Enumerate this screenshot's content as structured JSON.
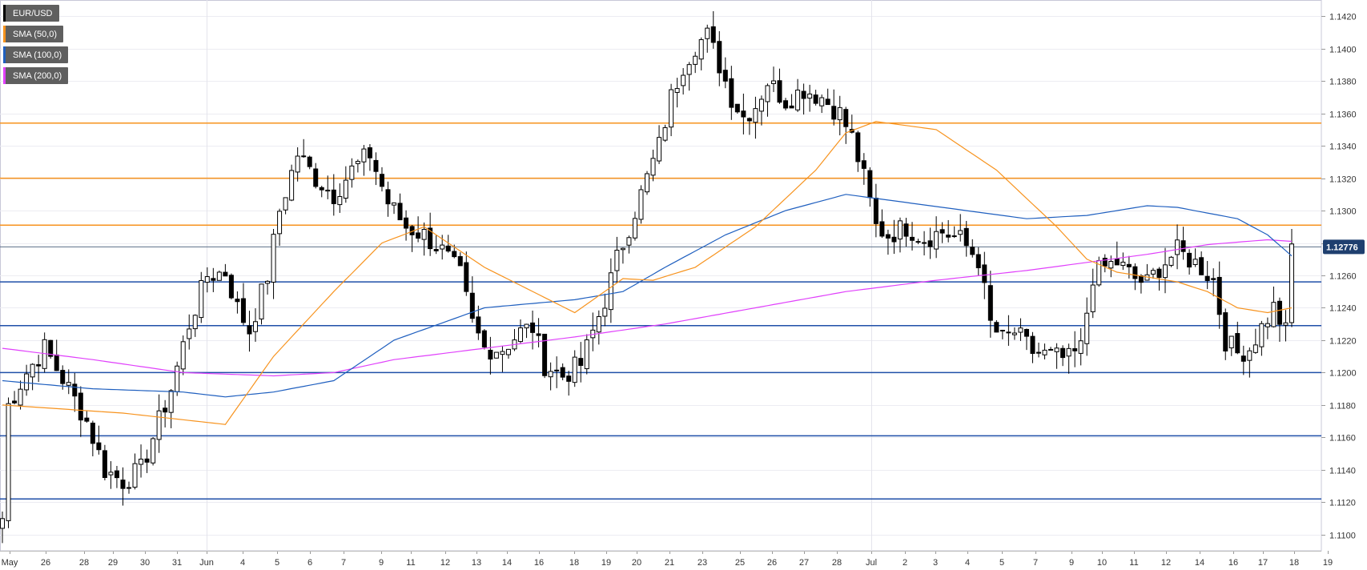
{
  "chart_data": {
    "type": "candlestick",
    "symbol": "EUR/USD",
    "legend": [
      {
        "label": "EUR/USD",
        "color": "#000000"
      },
      {
        "label": "SMA (50,0)",
        "color": "#f7931e"
      },
      {
        "label": "SMA (100,0)",
        "color": "#1f5fbf"
      },
      {
        "label": "SMA (200,0)",
        "color": "#e040fb"
      }
    ],
    "last_price": "1.12776",
    "ylim": [
      1.109,
      1.143
    ],
    "y_ticks": [
      "1.1100",
      "1.1120",
      "1.1140",
      "1.1160",
      "1.1180",
      "1.1200",
      "1.1220",
      "1.1240",
      "1.1260",
      "1.1280",
      "1.1300",
      "1.1320",
      "1.1340",
      "1.1360",
      "1.1380",
      "1.1400",
      "1.1420"
    ],
    "x_labels": [
      "May",
      "26",
      "28",
      "29",
      "30",
      "31",
      "Jun",
      "4",
      "5",
      "6",
      "7",
      "9",
      "11",
      "12",
      "13",
      "14",
      "16",
      "18",
      "19",
      "20",
      "21",
      "23",
      "25",
      "26",
      "27",
      "28",
      "Jul",
      "2",
      "3",
      "4",
      "5",
      "7",
      "9",
      "10",
      "11",
      "12",
      "14",
      "16",
      "17",
      "18",
      "19"
    ],
    "resistance_levels": [
      1.1354,
      1.132,
      1.1291
    ],
    "support_levels": [
      1.1256,
      1.1229,
      1.12,
      1.1161,
      1.1122
    ],
    "last_price_line": 1.12776,
    "series_anchors": {
      "price": [
        [
          0,
          1.111
        ],
        [
          1,
          1.118
        ],
        [
          4,
          1.12
        ],
        [
          7,
          1.1215
        ],
        [
          11,
          1.119
        ],
        [
          14,
          1.117
        ],
        [
          17,
          1.114
        ],
        [
          20,
          1.1133
        ],
        [
          23,
          1.114
        ],
        [
          26,
          1.117
        ],
        [
          28,
          1.119
        ],
        [
          31,
          1.123
        ],
        [
          34,
          1.126
        ],
        [
          37,
          1.1262
        ],
        [
          39,
          1.124
        ],
        [
          41,
          1.1226
        ],
        [
          44,
          1.126
        ],
        [
          46,
          1.13
        ],
        [
          49,
          1.1335
        ],
        [
          52,
          1.132
        ],
        [
          55,
          1.131
        ],
        [
          58,
          1.1325
        ],
        [
          61,
          1.1335
        ],
        [
          64,
          1.1305
        ],
        [
          67,
          1.129
        ],
        [
          70,
          1.1285
        ],
        [
          73,
          1.1275
        ],
        [
          76,
          1.126
        ],
        [
          78,
          1.123
        ],
        [
          80,
          1.1215
        ],
        [
          83,
          1.1215
        ],
        [
          86,
          1.1225
        ],
        [
          88,
          1.1228
        ],
        [
          90,
          1.1205
        ],
        [
          93,
          1.1198
        ],
        [
          96,
          1.1205
        ],
        [
          98,
          1.1225
        ],
        [
          100,
          1.1245
        ],
        [
          102,
          1.127
        ],
        [
          104,
          1.129
        ],
        [
          107,
          1.132
        ],
        [
          109,
          1.134
        ],
        [
          111,
          1.137
        ],
        [
          113,
          1.139
        ],
        [
          115,
          1.1402
        ],
        [
          117,
          1.1408
        ],
        [
          119,
          1.139
        ],
        [
          121,
          1.137
        ],
        [
          123,
          1.1358
        ],
        [
          125,
          1.1365
        ],
        [
          127,
          1.138
        ],
        [
          130,
          1.1368
        ],
        [
          133,
          1.1375
        ],
        [
          136,
          1.137
        ],
        [
          139,
          1.136
        ],
        [
          141,
          1.1345
        ],
        [
          143,
          1.132
        ],
        [
          145,
          1.129
        ],
        [
          147,
          1.1285
        ],
        [
          150,
          1.129
        ],
        [
          153,
          1.1283
        ],
        [
          156,
          1.1287
        ],
        [
          159,
          1.1282
        ],
        [
          162,
          1.127
        ],
        [
          164,
          1.123
        ],
        [
          166,
          1.122
        ],
        [
          168,
          1.1225
        ],
        [
          171,
          1.1213
        ],
        [
          174,
          1.121
        ],
        [
          177,
          1.1208
        ],
        [
          179,
          1.1215
        ],
        [
          181,
          1.126
        ],
        [
          183,
          1.1265
        ],
        [
          185,
          1.1268
        ],
        [
          188,
          1.1258
        ],
        [
          190,
          1.1255
        ],
        [
          192,
          1.1265
        ],
        [
          195,
          1.1275
        ],
        [
          197,
          1.127
        ],
        [
          199,
          1.1265
        ],
        [
          201,
          1.1257
        ],
        [
          203,
          1.122
        ],
        [
          205,
          1.1212
        ],
        [
          207,
          1.1215
        ],
        [
          209,
          1.1228
        ],
        [
          211,
          1.124
        ],
        [
          213,
          1.1225
        ],
        [
          214,
          1.1278
        ]
      ],
      "sma50": [
        [
          0,
          1.118
        ],
        [
          20,
          1.1175
        ],
        [
          37,
          1.1168
        ],
        [
          45,
          1.121
        ],
        [
          55,
          1.125
        ],
        [
          63,
          1.128
        ],
        [
          70,
          1.129
        ],
        [
          80,
          1.1265
        ],
        [
          95,
          1.1237
        ],
        [
          103,
          1.1258
        ],
        [
          108,
          1.1257
        ],
        [
          115,
          1.1265
        ],
        [
          125,
          1.129
        ],
        [
          135,
          1.1325
        ],
        [
          140,
          1.1348
        ],
        [
          145,
          1.1355
        ],
        [
          155,
          1.135
        ],
        [
          165,
          1.1325
        ],
        [
          175,
          1.129
        ],
        [
          180,
          1.127
        ],
        [
          185,
          1.1262
        ],
        [
          195,
          1.1256
        ],
        [
          200,
          1.125
        ],
        [
          205,
          1.124
        ],
        [
          210,
          1.1237
        ],
        [
          214,
          1.124
        ]
      ],
      "sma100": [
        [
          0,
          1.1195
        ],
        [
          15,
          1.119
        ],
        [
          30,
          1.1188
        ],
        [
          37,
          1.1185
        ],
        [
          45,
          1.1188
        ],
        [
          55,
          1.1195
        ],
        [
          65,
          1.122
        ],
        [
          80,
          1.124
        ],
        [
          95,
          1.1245
        ],
        [
          103,
          1.125
        ],
        [
          110,
          1.1265
        ],
        [
          120,
          1.1285
        ],
        [
          130,
          1.13
        ],
        [
          140,
          1.131
        ],
        [
          150,
          1.1305
        ],
        [
          160,
          1.13
        ],
        [
          170,
          1.1295
        ],
        [
          180,
          1.1297
        ],
        [
          190,
          1.1303
        ],
        [
          195,
          1.1302
        ],
        [
          205,
          1.1295
        ],
        [
          210,
          1.1285
        ],
        [
          214,
          1.1272
        ]
      ],
      "sma200": [
        [
          0,
          1.1215
        ],
        [
          15,
          1.1208
        ],
        [
          30,
          1.12
        ],
        [
          45,
          1.1198
        ],
        [
          55,
          1.12
        ],
        [
          65,
          1.1208
        ],
        [
          80,
          1.1215
        ],
        [
          95,
          1.1222
        ],
        [
          110,
          1.123
        ],
        [
          125,
          1.124
        ],
        [
          140,
          1.125
        ],
        [
          155,
          1.1257
        ],
        [
          170,
          1.1263
        ],
        [
          180,
          1.1268
        ],
        [
          190,
          1.1273
        ],
        [
          200,
          1.1279
        ],
        [
          210,
          1.1282
        ],
        [
          214,
          1.1281
        ]
      ]
    }
  }
}
